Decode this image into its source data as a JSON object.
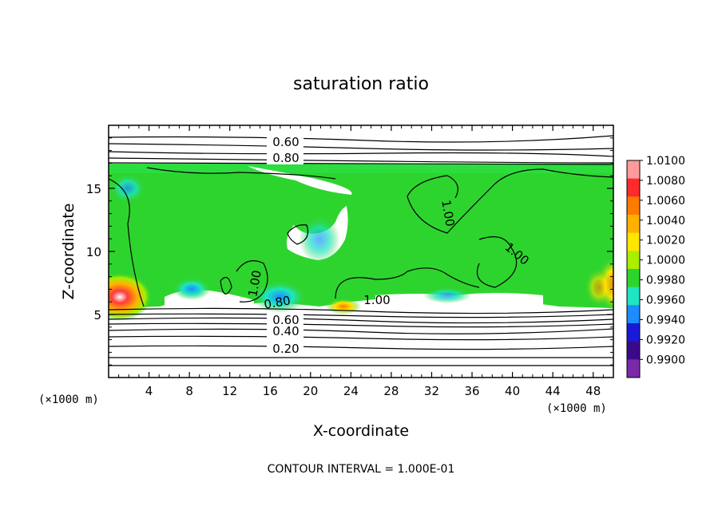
{
  "chart_data": {
    "type": "heatmap",
    "title": "saturation ratio",
    "xlabel": "X-coordinate",
    "ylabel": "Z-coordinate",
    "x_unit_left": "(×1000 m)",
    "x_unit_right": "(×1000 m)",
    "footer": "CONTOUR INTERVAL = 1.000E-01",
    "xlim": [
      0,
      50
    ],
    "ylim": [
      0,
      20
    ],
    "x_ticks": [
      4,
      8,
      12,
      16,
      20,
      24,
      28,
      32,
      36,
      40,
      44,
      48
    ],
    "y_ticks": [
      5,
      10,
      15
    ],
    "colorbar": {
      "levels": [
        "1.0100",
        "1.0080",
        "1.0060",
        "1.0040",
        "1.0020",
        "1.0000",
        "0.9980",
        "0.9960",
        "0.9940",
        "0.9920",
        "0.9900"
      ],
      "colors": [
        "#ff9a9a",
        "#ff2a2a",
        "#ff7a00",
        "#ffb000",
        "#ffe600",
        "#aaee00",
        "#2ed42e",
        "#1ee6c2",
        "#1c8cff",
        "#1a1ad6",
        "#3a0a8a",
        "#7a2aa8"
      ]
    },
    "contour_labels": [
      "0.60",
      "0.80",
      "1.00",
      "1.00",
      "1.00",
      "1.00",
      "0.80",
      "0.60",
      "0.40",
      "0.20"
    ],
    "contour_levels": [
      0.1,
      0.2,
      0.3,
      0.4,
      0.5,
      0.6,
      0.7,
      0.8,
      0.9,
      1.0
    ]
  }
}
